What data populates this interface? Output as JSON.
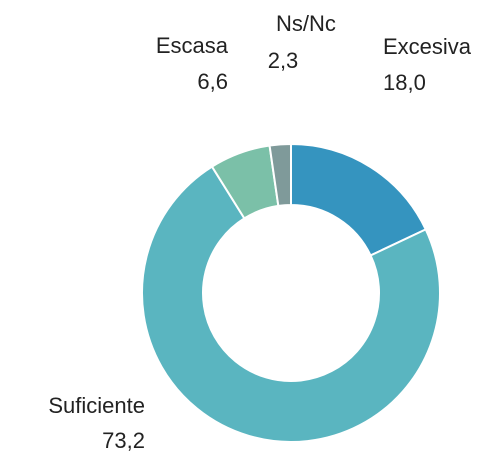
{
  "chart_data": {
    "type": "donut",
    "categories": [
      "Excesiva",
      "Suficiente",
      "Escasa",
      "Ns/Nc"
    ],
    "values": [
      18.0,
      73.2,
      6.6,
      2.3
    ],
    "value_labels": [
      "18,0",
      "73,2",
      "6,6",
      "2,3"
    ],
    "colors": [
      "#3594bf",
      "#5ab5c0",
      "#7bc0a8",
      "#7f9a9a"
    ]
  }
}
